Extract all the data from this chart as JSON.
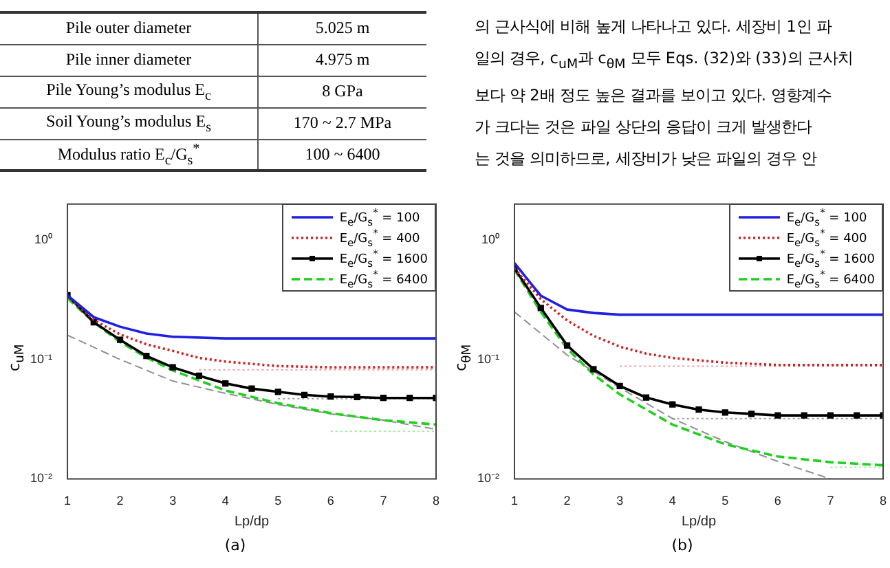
{
  "chart_data": [
    {
      "type": "other",
      "annotations": [
        "Pile outer diameter",
        "5.025 m",
        "Pile inner diameter",
        "4.975 m",
        "Pile Young’s modulus E$_{c}$",
        "8 GPa",
        "Soil Young’s modulus E$_{s}$",
        "170 ~ 2.7 MPa",
        "Modulus ratio E$_{c}$/G$_{s}$$^{*}$",
        "100 ~ 6400"
      ]
    },
    {
      "type": "other",
      "annotations": [
        "의 근사식에 비해 높게 나타나고 있다. 세장비 1인 파",
        "일의 경우, c$_{uM}$과 c$_{θM}$ 모두 Eqs. (32)와 (33)의 근사치",
        "보다 약 2배 정도 높은 결과를 보이고 있다. 영향계수",
        "가 크다는 것은 파일 상단의 응답이 크게 발생한다",
        "는 것을 의미하므로, 세장비가 낮은 파일의 경우 안"
      ]
    },
    {
      "type": "line",
      "xlabel": "Lp/dp",
      "ylabel": "c$_{uM}$",
      "annotations": [
        "(a)"
      ],
      "log": "y",
      "grid": false,
      "legend": "top right",
      "xlim": [
        1,
        8
      ],
      "xticks": [
        1,
        2,
        3,
        4,
        5,
        6,
        7,
        8
      ],
      "ylim": [
        0.01,
        2
      ],
      "yticks": [
        {
          "value": 0.01,
          "label": "10⁻²"
        },
        {
          "value": 0.1,
          "label": "10⁻¹"
        },
        {
          "value": 1,
          "label": "10⁰"
        }
      ],
      "series": [
        {
          "name": "E$_{e}$/G$_{s}$$^{*}$ = 100",
          "color": "#2020e0",
          "line_style": "solid",
          "marker": "none",
          "x": [
            1,
            1.5,
            2,
            2.5,
            3,
            4,
            5,
            6,
            7,
            8
          ],
          "values": [
            0.345,
            0.226,
            0.188,
            0.165,
            0.155,
            0.15,
            0.15,
            0.15,
            0.15,
            0.15
          ]
        },
        {
          "name": "E$_{e}$/G$_{s}$$^{*}$ = 400",
          "color": "#d02020",
          "line_style": "dotted",
          "marker": "none",
          "x": [
            1,
            1.5,
            2,
            2.5,
            3,
            3.5,
            4,
            5,
            6,
            7,
            8
          ],
          "values": [
            0.34,
            0.214,
            0.162,
            0.134,
            0.118,
            0.103,
            0.096,
            0.088,
            0.086,
            0.086,
            0.086
          ]
        },
        {
          "name": "E$_{e}$/G$_{s}$$^{*}$ = 1600",
          "color": "#000000",
          "line_style": "solid",
          "marker": "square",
          "x": [
            1,
            1.5,
            2,
            2.5,
            3,
            3.5,
            4,
            4.5,
            5,
            5.5,
            6,
            6.5,
            7,
            7.5,
            8
          ],
          "values": [
            0.345,
            0.205,
            0.146,
            0.107,
            0.086,
            0.073,
            0.063,
            0.057,
            0.0536,
            0.0505,
            0.0489,
            0.0484,
            0.0476,
            0.0476,
            0.0476
          ]
        },
        {
          "name": "E$_{e}$/G$_{s}$$^{*}$ = 6400",
          "color": "#20d020",
          "line_style": "dashed",
          "marker": "none",
          "x": [
            1,
            1.5,
            2,
            2.5,
            3,
            4,
            5,
            6,
            7,
            8
          ],
          "values": [
            0.326,
            0.205,
            0.14,
            0.104,
            0.081,
            0.055,
            0.043,
            0.0355,
            0.031,
            0.0285
          ]
        },
        {
          "color": "#909090",
          "line_style": "dashed",
          "marker": "none",
          "x": [
            1,
            2,
            3,
            4,
            5,
            6,
            7,
            8
          ],
          "values": [
            0.16,
            0.1,
            0.066,
            0.052,
            0.042,
            0.035,
            0.031,
            0.026
          ]
        },
        {
          "color": "#f0a0a0",
          "line_style": "dotted",
          "marker": "none",
          "x": [
            3.5,
            8
          ],
          "values": [
            0.082,
            0.082
          ]
        },
        {
          "color": "#a0a0a0",
          "line_style": "dotted",
          "marker": "none",
          "x": [
            5,
            8
          ],
          "values": [
            0.047,
            0.047
          ]
        },
        {
          "color": "#a0f0a0",
          "line_style": "dotted",
          "marker": "none",
          "x": [
            6,
            8
          ],
          "values": [
            0.025,
            0.025
          ]
        }
      ]
    },
    {
      "type": "line",
      "xlabel": "Lp/dp",
      "ylabel": "c$_{θM}$",
      "annotations": [
        "(b)"
      ],
      "log": "y",
      "grid": false,
      "legend": "top right",
      "xlim": [
        1,
        8
      ],
      "xticks": [
        1,
        2,
        3,
        4,
        5,
        6,
        7,
        8
      ],
      "ylim": [
        0.01,
        2
      ],
      "yticks": [
        {
          "value": 0.01,
          "label": "10⁻²"
        },
        {
          "value": 0.1,
          "label": "10⁻¹"
        },
        {
          "value": 1,
          "label": "10⁰"
        }
      ],
      "series": [
        {
          "name": "E$_{e}$/G$_{s}$$^{*}$ = 100",
          "color": "#2020e0",
          "line_style": "solid",
          "marker": "none",
          "x": [
            1,
            1.5,
            2,
            2.5,
            3,
            4,
            5,
            6,
            7,
            8
          ],
          "values": [
            0.64,
            0.342,
            0.262,
            0.245,
            0.237,
            0.237,
            0.237,
            0.237,
            0.237,
            0.237
          ]
        },
        {
          "name": "E$_{e}$/G$_{s}$$^{*}$ = 400",
          "color": "#d02020",
          "line_style": "dotted",
          "marker": "none",
          "x": [
            1,
            1.5,
            2,
            2.5,
            3,
            3.5,
            4,
            5,
            6,
            7,
            8
          ],
          "values": [
            0.58,
            0.32,
            0.212,
            0.158,
            0.128,
            0.112,
            0.103,
            0.094,
            0.09,
            0.09,
            0.09
          ]
        },
        {
          "name": "E$_{e}$/G$_{s}$$^{*}$ = 1600",
          "color": "#000000",
          "line_style": "solid",
          "marker": "square",
          "x": [
            1,
            1.5,
            2,
            2.5,
            3,
            3.5,
            4,
            4.5,
            5,
            5.5,
            6,
            6.5,
            7,
            7.5,
            8
          ],
          "values": [
            0.58,
            0.27,
            0.131,
            0.083,
            0.06,
            0.048,
            0.042,
            0.038,
            0.036,
            0.035,
            0.034,
            0.034,
            0.034,
            0.034,
            0.034
          ]
        },
        {
          "name": "E$_{e}$/G$_{s}$$^{*}$ = 6400",
          "color": "#20d020",
          "line_style": "dashed",
          "marker": "none",
          "x": [
            1,
            1.5,
            2,
            2.5,
            3,
            4,
            5,
            6,
            7,
            8
          ],
          "values": [
            0.566,
            0.25,
            0.123,
            0.075,
            0.051,
            0.0285,
            0.0195,
            0.0154,
            0.0138,
            0.013
          ]
        },
        {
          "color": "#909090",
          "line_style": "dashed",
          "marker": "none",
          "x": [
            1,
            2,
            3,
            4,
            5,
            6,
            7
          ],
          "values": [
            0.25,
            0.109,
            0.058,
            0.032,
            0.0205,
            0.014,
            0.01
          ]
        },
        {
          "color": "#f0a0a0",
          "line_style": "dotted",
          "marker": "none",
          "x": [
            3,
            8
          ],
          "values": [
            0.088,
            0.088
          ]
        },
        {
          "color": "#a0a0a0",
          "line_style": "dotted",
          "marker": "none",
          "x": [
            4,
            8
          ],
          "values": [
            0.032,
            0.032
          ]
        },
        {
          "color": "#a0f0a0",
          "line_style": "dotted",
          "marker": "none",
          "x": [
            7,
            8
          ],
          "values": [
            0.0125,
            0.0125
          ]
        }
      ]
    }
  ]
}
